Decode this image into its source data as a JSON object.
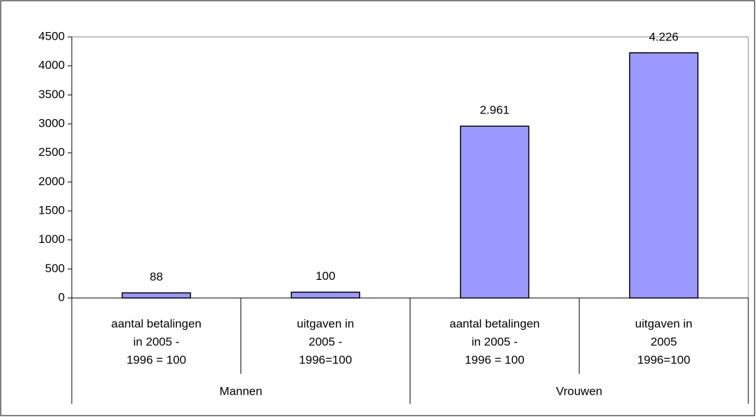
{
  "chart_data": {
    "type": "bar",
    "categories": [
      [
        "aantal betalingen",
        "in 2005 -",
        "1996 = 100"
      ],
      [
        "uitgaven in",
        "2005 -",
        "1996=100"
      ],
      [
        "aantal betalingen",
        "in 2005 -",
        "1996 = 100"
      ],
      [
        "uitgaven in",
        "2005",
        "1996=100"
      ]
    ],
    "groups": [
      {
        "name": "Mannen",
        "categories": [
          0,
          1
        ]
      },
      {
        "name": "Vrouwen",
        "categories": [
          2,
          3
        ]
      }
    ],
    "values": [
      88,
      100,
      2961,
      4226
    ],
    "value_labels": [
      "88",
      "100",
      "2.961",
      "4.226"
    ],
    "color": "#9999ff",
    "ylim": [
      0,
      4500
    ],
    "yticks": [
      0,
      500,
      1000,
      1500,
      2000,
      2500,
      3000,
      3500,
      4000,
      4500
    ],
    "grid": false
  }
}
